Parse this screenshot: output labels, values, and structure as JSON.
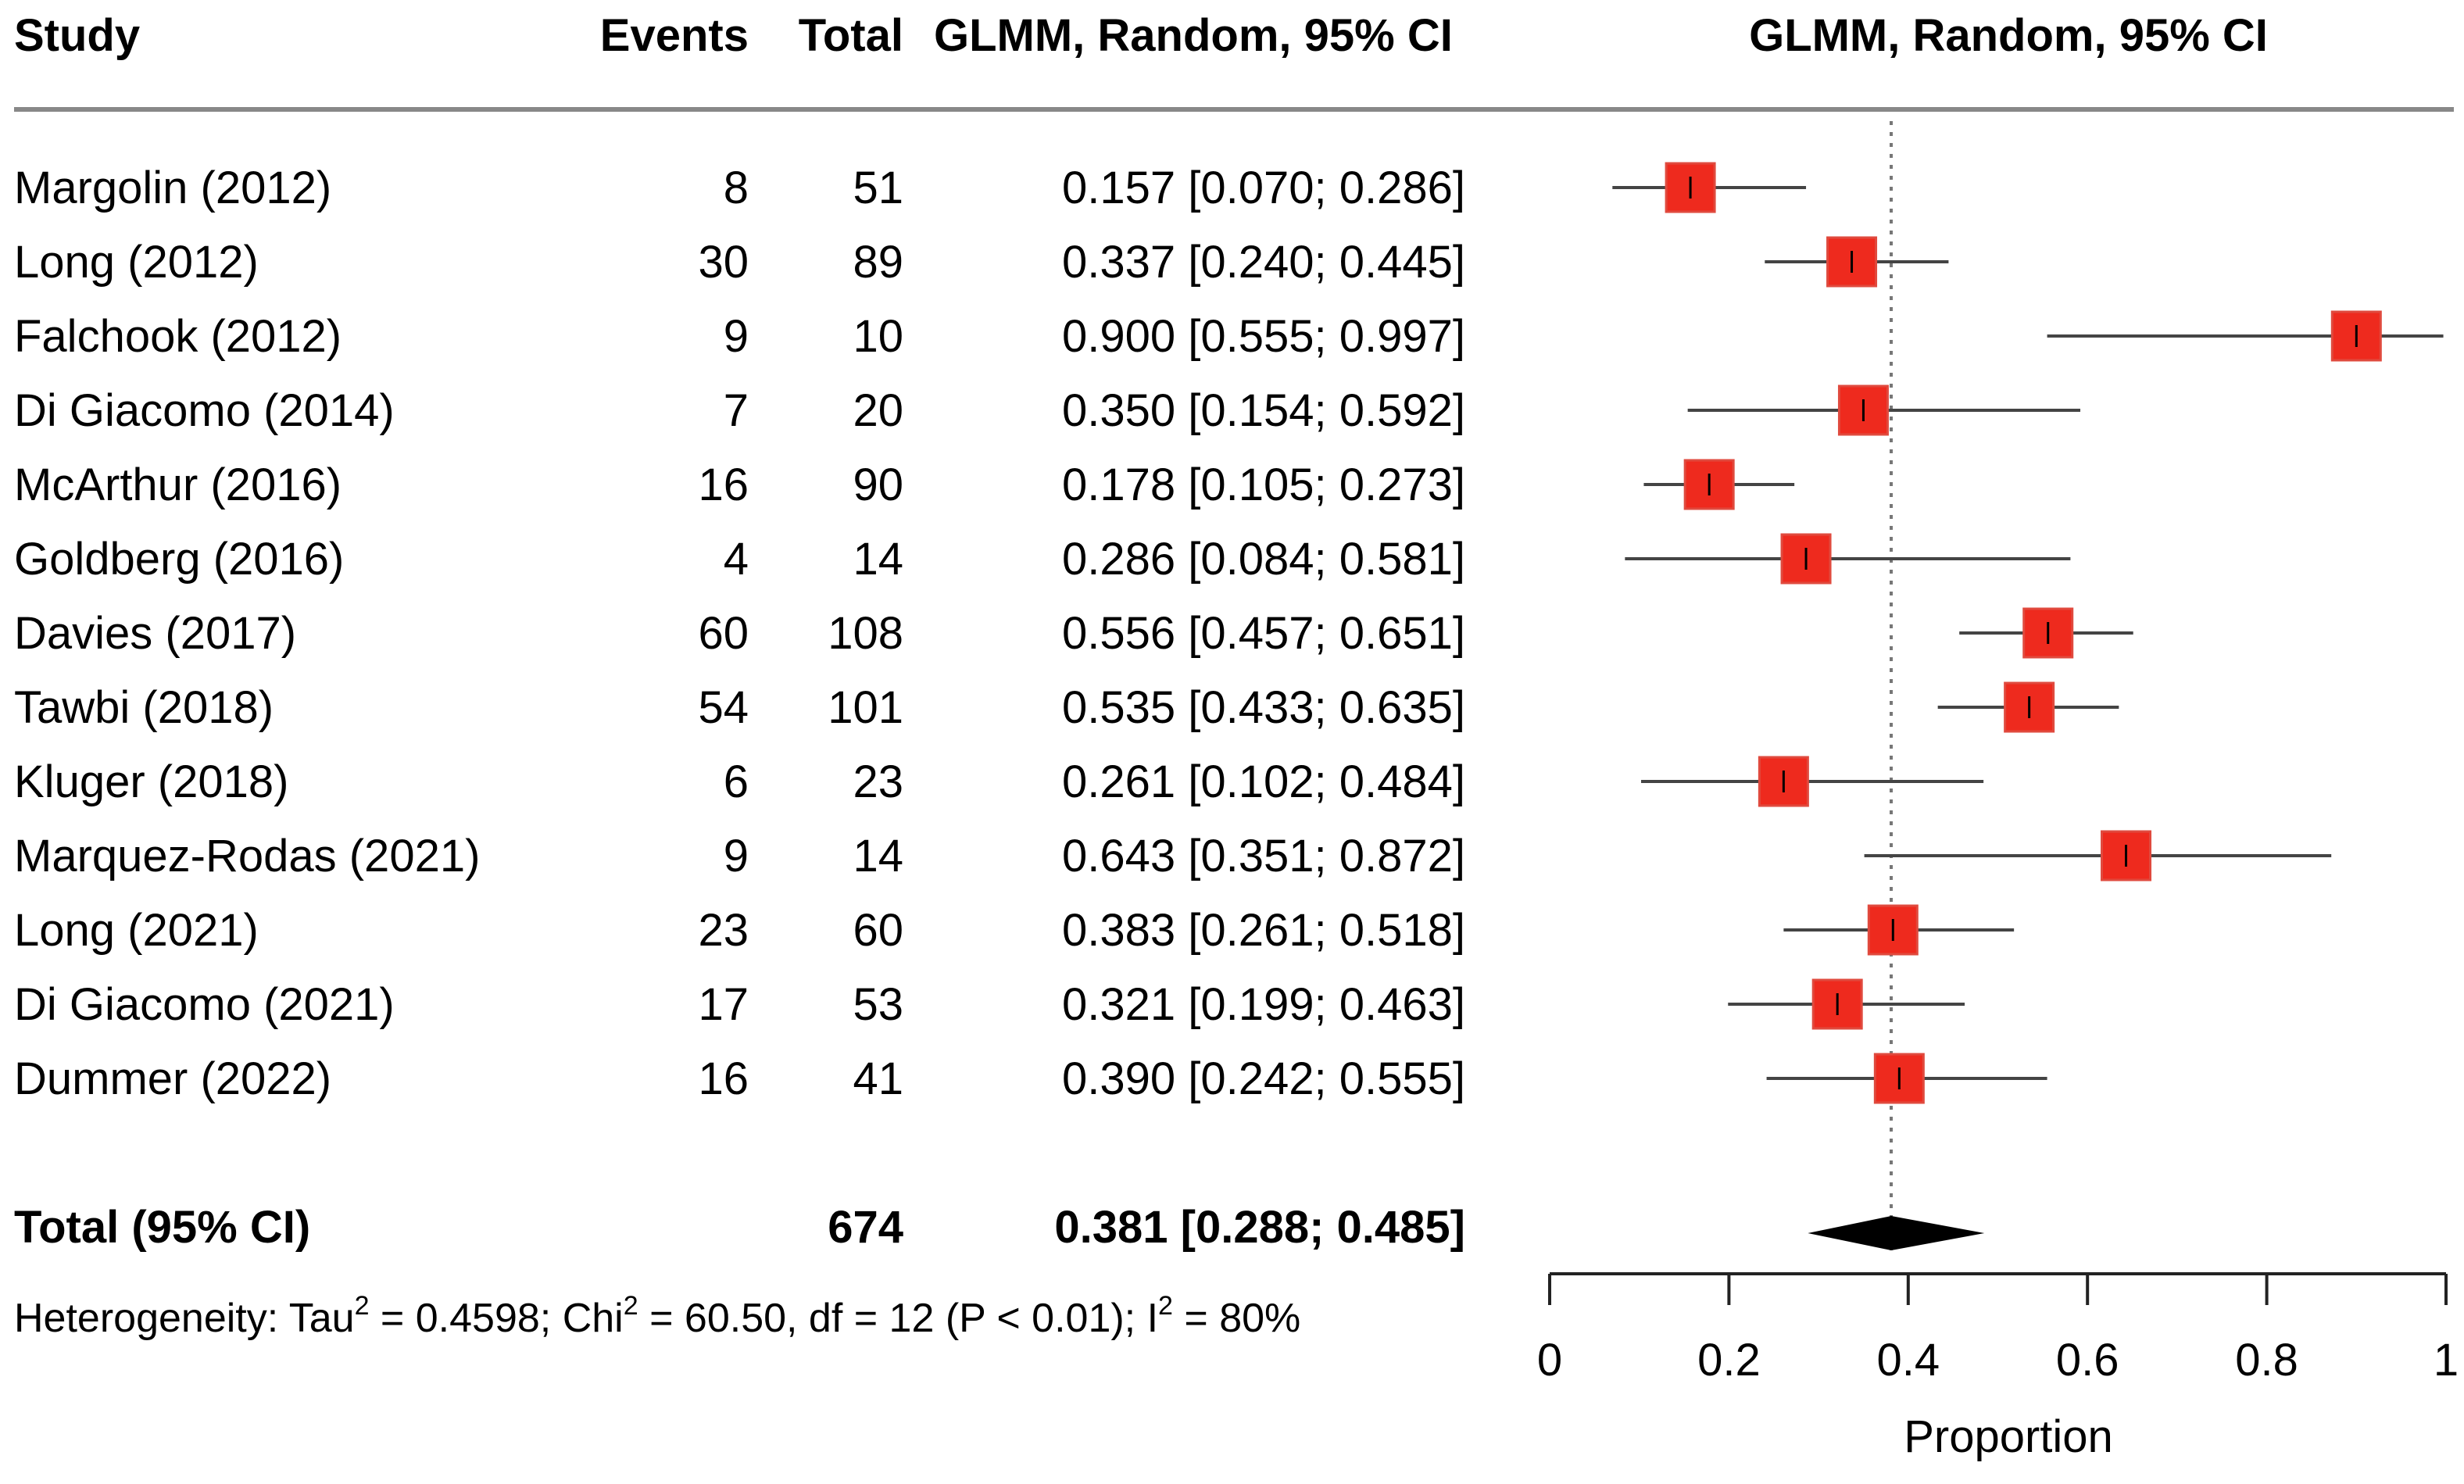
{
  "columns": {
    "study": "Study",
    "events": "Events",
    "total": "Total",
    "estimate": "GLMM, Random, 95% CI",
    "plot": "GLMM, Random, 95% CI"
  },
  "chart_data": {
    "type": "forest",
    "xlabel": "Proportion",
    "xlim": [
      0,
      1
    ],
    "ticks": [
      0,
      0.2,
      0.4,
      0.6,
      0.8,
      1
    ],
    "tick_labels": [
      "0",
      "0.2",
      "0.4",
      "0.6",
      "0.8",
      "1"
    ],
    "reference_line": 0.381,
    "marker_color": "#ee2a1e",
    "studies": [
      {
        "study": "Margolin (2012)",
        "events": "8",
        "total": "51",
        "est": 0.157,
        "lo": 0.07,
        "hi": 0.286,
        "ci_text": "0.157 [0.070; 0.286]"
      },
      {
        "study": "Long (2012)",
        "events": "30",
        "total": "89",
        "est": 0.337,
        "lo": 0.24,
        "hi": 0.445,
        "ci_text": "0.337 [0.240; 0.445]"
      },
      {
        "study": "Falchook (2012)",
        "events": "9",
        "total": "10",
        "est": 0.9,
        "lo": 0.555,
        "hi": 0.997,
        "ci_text": "0.900 [0.555; 0.997]"
      },
      {
        "study": "Di Giacomo (2014)",
        "events": "7",
        "total": "20",
        "est": 0.35,
        "lo": 0.154,
        "hi": 0.592,
        "ci_text": "0.350 [0.154; 0.592]"
      },
      {
        "study": "McArthur (2016)",
        "events": "16",
        "total": "90",
        "est": 0.178,
        "lo": 0.105,
        "hi": 0.273,
        "ci_text": "0.178 [0.105; 0.273]"
      },
      {
        "study": "Goldberg (2016)",
        "events": "4",
        "total": "14",
        "est": 0.286,
        "lo": 0.084,
        "hi": 0.581,
        "ci_text": "0.286 [0.084; 0.581]"
      },
      {
        "study": "Davies (2017)",
        "events": "60",
        "total": "108",
        "est": 0.556,
        "lo": 0.457,
        "hi": 0.651,
        "ci_text": "0.556 [0.457; 0.651]"
      },
      {
        "study": "Tawbi (2018)",
        "events": "54",
        "total": "101",
        "est": 0.535,
        "lo": 0.433,
        "hi": 0.635,
        "ci_text": "0.535 [0.433; 0.635]"
      },
      {
        "study": "Kluger (2018)",
        "events": "6",
        "total": "23",
        "est": 0.261,
        "lo": 0.102,
        "hi": 0.484,
        "ci_text": "0.261 [0.102; 0.484]"
      },
      {
        "study": "Marquez-Rodas (2021)",
        "events": "9",
        "total": "14",
        "est": 0.643,
        "lo": 0.351,
        "hi": 0.872,
        "ci_text": "0.643 [0.351; 0.872]"
      },
      {
        "study": "Long (2021)",
        "events": "23",
        "total": "60",
        "est": 0.383,
        "lo": 0.261,
        "hi": 0.518,
        "ci_text": "0.383 [0.261; 0.518]"
      },
      {
        "study": "Di Giacomo (2021)",
        "events": "17",
        "total": "53",
        "est": 0.321,
        "lo": 0.199,
        "hi": 0.463,
        "ci_text": "0.321 [0.199; 0.463]"
      },
      {
        "study": "Dummer (2022)",
        "events": "16",
        "total": "41",
        "est": 0.39,
        "lo": 0.242,
        "hi": 0.555,
        "ci_text": "0.390 [0.242; 0.555]"
      }
    ],
    "pooled": {
      "label": "Total (95% CI)",
      "total": "674",
      "est": 0.381,
      "lo": 0.288,
      "hi": 0.485,
      "ci_text": "0.381 [0.288; 0.485]"
    }
  },
  "heterogeneity": {
    "tau_prefix": "Heterogeneity: Tau",
    "tau_value": " = 0.4598; Chi",
    "chi_value": " = 60.50, df = 12 (P < 0.01); I",
    "i_value": " = 80%",
    "sup": "2"
  }
}
